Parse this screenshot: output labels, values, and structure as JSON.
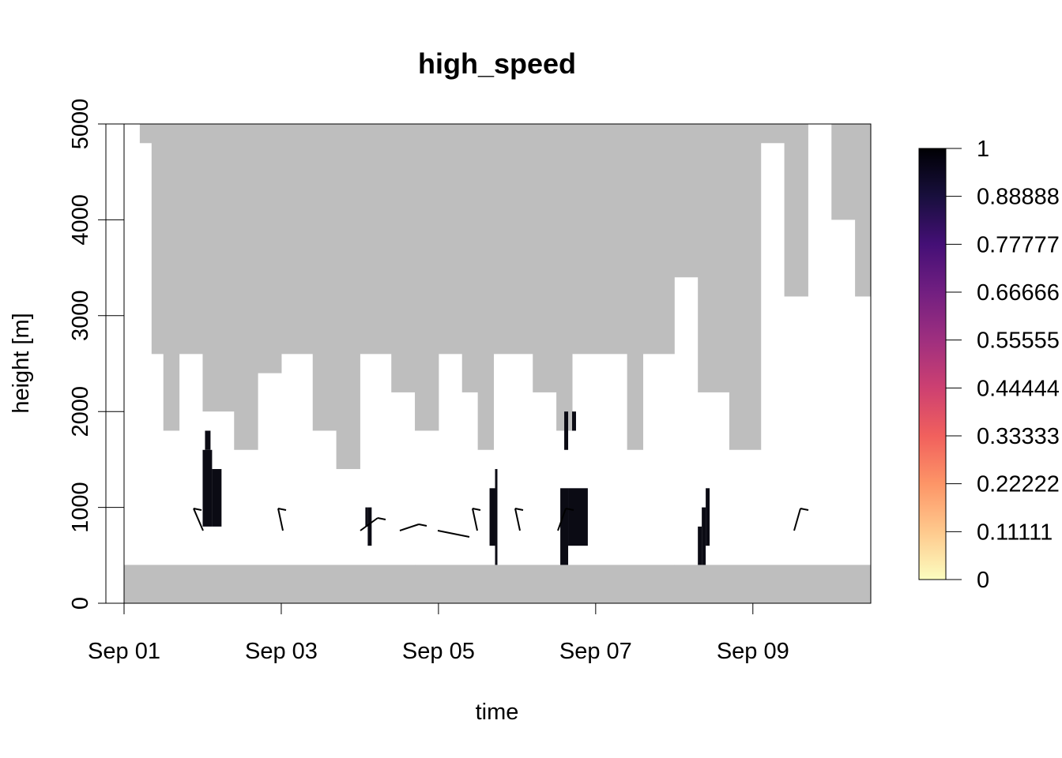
{
  "chart_data": {
    "type": "heatmap",
    "title": "high_speed",
    "xlabel": "time",
    "ylabel": "height [m]",
    "x_ticks": [
      "Sep 01",
      "Sep 03",
      "Sep 05",
      "Sep 07",
      "Sep 09"
    ],
    "y_ticks": [
      "0",
      "1000",
      "2000",
      "3000",
      "4000",
      "5000"
    ],
    "x_range_days": [
      0,
      9.5
    ],
    "xlim": [
      "Sep 01",
      "Sep 10 12:00"
    ],
    "ylim": [
      0,
      5000
    ],
    "colorbar": {
      "ticks": [
        "0",
        "0.11111",
        "0.22222",
        "0.33333",
        "0.44444",
        "0.55555",
        "0.66666",
        "0.77777",
        "0.88888",
        "1"
      ],
      "range": [
        0,
        1
      ],
      "colormap": "magma (reversed)",
      "colors": [
        "#FCFDBF",
        "#FEC98D",
        "#FD9567",
        "#F1605D",
        "#CD4071",
        "#9F2F7F",
        "#721F81",
        "#440F76",
        "#180F3D",
        "#000004"
      ]
    },
    "missing_color": "#BEBEBE",
    "zero_color": "#FFFFFF",
    "value_color": "#0B0B14",
    "gray_columns": [
      {
        "d": [
          0.0,
          0.2
        ],
        "bottom": 400,
        "top": 5000
      },
      {
        "d": [
          0.2,
          0.35
        ],
        "bottom": 400,
        "top": 4800
      },
      {
        "d": [
          0.35,
          0.5
        ],
        "bottom": 400,
        "top": 2600
      },
      {
        "d": [
          0.5,
          0.7
        ],
        "bottom": 400,
        "top": 1800
      },
      {
        "d": [
          0.7,
          1.0
        ],
        "bottom": 400,
        "top": 2600
      },
      {
        "d": [
          1.0,
          1.4
        ],
        "bottom": 400,
        "top": 2000
      },
      {
        "d": [
          1.4,
          1.7
        ],
        "bottom": 400,
        "top": 1600
      },
      {
        "d": [
          1.7,
          2.0
        ],
        "bottom": 400,
        "top": 2400
      },
      {
        "d": [
          2.0,
          2.4
        ],
        "bottom": 400,
        "top": 2600
      },
      {
        "d": [
          2.4,
          2.7
        ],
        "bottom": 400,
        "top": 1800
      },
      {
        "d": [
          2.7,
          3.0
        ],
        "bottom": 400,
        "top": 1400
      },
      {
        "d": [
          3.0,
          3.4
        ],
        "bottom": 400,
        "top": 2600
      },
      {
        "d": [
          3.4,
          3.7
        ],
        "bottom": 400,
        "top": 2200
      },
      {
        "d": [
          3.7,
          4.0
        ],
        "bottom": 400,
        "top": 1800
      },
      {
        "d": [
          4.0,
          4.3
        ],
        "bottom": 400,
        "top": 2600
      },
      {
        "d": [
          4.3,
          4.5
        ],
        "bottom": 400,
        "top": 2200
      },
      {
        "d": [
          4.5,
          4.7
        ],
        "bottom": 400,
        "top": 1600
      },
      {
        "d": [
          4.7,
          5.2
        ],
        "bottom": 400,
        "top": 2600
      },
      {
        "d": [
          5.2,
          5.5
        ],
        "bottom": 400,
        "top": 2200
      },
      {
        "d": [
          5.5,
          5.7
        ],
        "bottom": 400,
        "top": 1800
      },
      {
        "d": [
          5.7,
          6.4
        ],
        "bottom": 400,
        "top": 2600
      },
      {
        "d": [
          6.4,
          6.6
        ],
        "bottom": 400,
        "top": 1600
      },
      {
        "d": [
          6.6,
          7.0
        ],
        "bottom": 400,
        "top": 2600
      },
      {
        "d": [
          7.0,
          7.3
        ],
        "bottom": 400,
        "top": 3400
      },
      {
        "d": [
          7.3,
          7.7
        ],
        "bottom": 400,
        "top": 2200
      },
      {
        "d": [
          7.7,
          8.1
        ],
        "bottom": 400,
        "top": 1600
      },
      {
        "d": [
          8.1,
          8.4
        ],
        "bottom": 400,
        "top": 4800
      },
      {
        "d": [
          8.4,
          8.7
        ],
        "bottom": 400,
        "top": 3200
      },
      {
        "d": [
          8.7,
          9.0
        ],
        "bottom": 400,
        "top": 5000
      },
      {
        "d": [
          9.0,
          9.3
        ],
        "bottom": 400,
        "top": 4000
      },
      {
        "d": [
          9.3,
          9.5
        ],
        "bottom": 400,
        "top": 3200
      }
    ],
    "high_speed_cells": [
      {
        "d": [
          1.0,
          1.12
        ],
        "bottom": 800,
        "top": 1600
      },
      {
        "d": [
          1.03,
          1.1
        ],
        "bottom": 1600,
        "top": 1800
      },
      {
        "d": [
          1.12,
          1.24
        ],
        "bottom": 800,
        "top": 1400
      },
      {
        "d": [
          3.07,
          3.1
        ],
        "bottom": 800,
        "top": 1000
      },
      {
        "d": [
          3.1,
          3.15
        ],
        "bottom": 600,
        "top": 1000
      },
      {
        "d": [
          4.65,
          4.72
        ],
        "bottom": 600,
        "top": 1200
      },
      {
        "d": [
          4.72,
          4.75
        ],
        "bottom": 400,
        "top": 1400
      },
      {
        "d": [
          5.55,
          5.65
        ],
        "bottom": 400,
        "top": 1200
      },
      {
        "d": [
          5.6,
          5.65
        ],
        "bottom": 1600,
        "top": 2000
      },
      {
        "d": [
          5.65,
          5.9
        ],
        "bottom": 600,
        "top": 1200
      },
      {
        "d": [
          5.7,
          5.75
        ],
        "bottom": 1800,
        "top": 2000
      },
      {
        "d": [
          7.3,
          7.35
        ],
        "bottom": 400,
        "top": 800
      },
      {
        "d": [
          7.35,
          7.4
        ],
        "bottom": 400,
        "top": 1000
      },
      {
        "d": [
          7.4,
          7.45
        ],
        "bottom": 600,
        "top": 1200
      }
    ]
  }
}
